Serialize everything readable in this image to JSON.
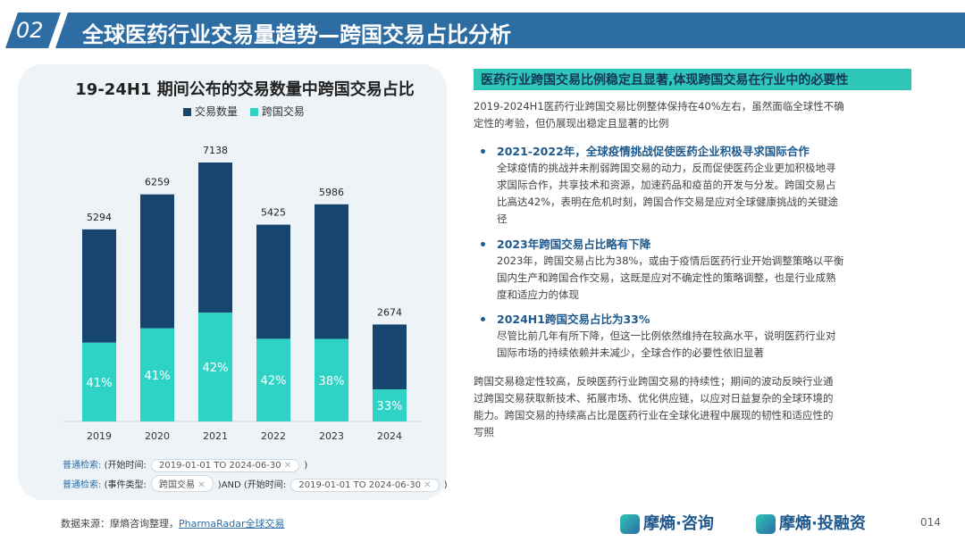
{
  "header": {
    "number": "02",
    "title": "全球医药行业交易量趋势—跨国交易占比分析"
  },
  "chart_data": {
    "type": "bar",
    "title": "19-24H1 期间公布的交易数量中跨国交易占比",
    "categories": [
      "2019",
      "2020",
      "2021",
      "2022",
      "2023",
      "2024"
    ],
    "series": [
      {
        "name": "交易数量",
        "values": [
          5294,
          6259,
          7138,
          5425,
          5986,
          2674
        ],
        "color": "#16466f"
      },
      {
        "name": "跨国交易",
        "share_labels": [
          "41%",
          "41%",
          "42%",
          "42%",
          "38%",
          "33%"
        ],
        "share_values": [
          41,
          41,
          42,
          42,
          38,
          33
        ],
        "color": "#2ed3c6"
      }
    ],
    "legend_position": "top-center",
    "ylim": [
      0,
      7138
    ],
    "grid": false
  },
  "search": {
    "row1": {
      "label": "普通检索:",
      "field": "(开始时间:",
      "tag": "2019-01-01 TO 2024-06-30",
      "close": "✕",
      "end": ")"
    },
    "row2": {
      "label": "普通检索:",
      "field": "(事件类型:",
      "tag1": "跨国交易",
      "close1": "✕",
      "mid": ")AND (开始时间:",
      "tag2": "2019-01-01 TO 2024-06-30",
      "close2": "✕",
      "end": ")"
    }
  },
  "source": {
    "prefix": "数据来源：摩熵咨询整理，",
    "link": "PharmaRadar全球交易"
  },
  "right": {
    "headline": "医药行业跨国交易比例稳定且显著,体现跨国交易在行业中的必要性",
    "intro": [
      "2019-2024H1医药行业跨国交易比例整体保持在40%左右，虽然面临全球性不确",
      "定性的考验，但仍展现出稳定且显著的比例"
    ],
    "bullets": [
      {
        "title": "2021-2022年，全球疫情挑战促使医药企业积极寻求国际合作",
        "lines": [
          "全球疫情的挑战并未削弱跨国交易的动力，反而促使医药企业更加积极地寻",
          "求国际合作，共享技术和资源，加速药品和疫苗的开发与分发。跨国交易占",
          "比高达42%，表明在危机时刻，跨国合作交易是应对全球健康挑战的关键途",
          "径"
        ]
      },
      {
        "title": "2023年跨国交易占比略有下降",
        "lines": [
          "2023年，跨国交易占比为38%，或由于疫情后医药行业开始调整策略以平衡",
          "国内生产和跨国合作交易，这既是应对不确定性的策略调整，也是行业成熟",
          "度和适应力的体现"
        ]
      },
      {
        "title": "2024H1跨国交易占比为33%",
        "lines": [
          "尽管比前几年有所下降，但这一比例依然维持在较高水平，说明医药行业对",
          "国际市场的持续依赖并未减少，全球合作的必要性依旧显著"
        ]
      }
    ],
    "conclusion": [
      "跨国交易稳定性较高，反映医药行业跨国交易的持续性；期间的波动反映行业通",
      "过跨国交易获取新技术、拓展市场、优化供应链，以应对日益复杂的全球环境的",
      "能力。跨国交易的持续高占比是医药行业在全球化进程中展现的韧性和适应性的",
      "写照"
    ]
  },
  "footer": {
    "logo1": "摩熵·咨询",
    "logo2": "摩熵·投融资",
    "page": "014"
  }
}
